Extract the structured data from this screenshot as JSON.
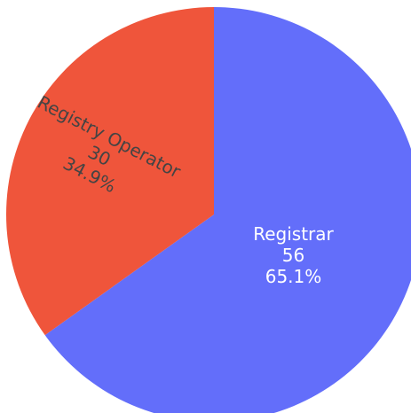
{
  "chart_data": {
    "type": "pie",
    "categories": [
      "Registrar",
      "Registry Operator"
    ],
    "values": [
      56,
      30
    ],
    "percent_labels": [
      "65.1%",
      "34.9%"
    ],
    "colors": [
      "#636efa",
      "#ef553b"
    ],
    "text_colors": [
      "#ffffff",
      "#444444"
    ]
  }
}
